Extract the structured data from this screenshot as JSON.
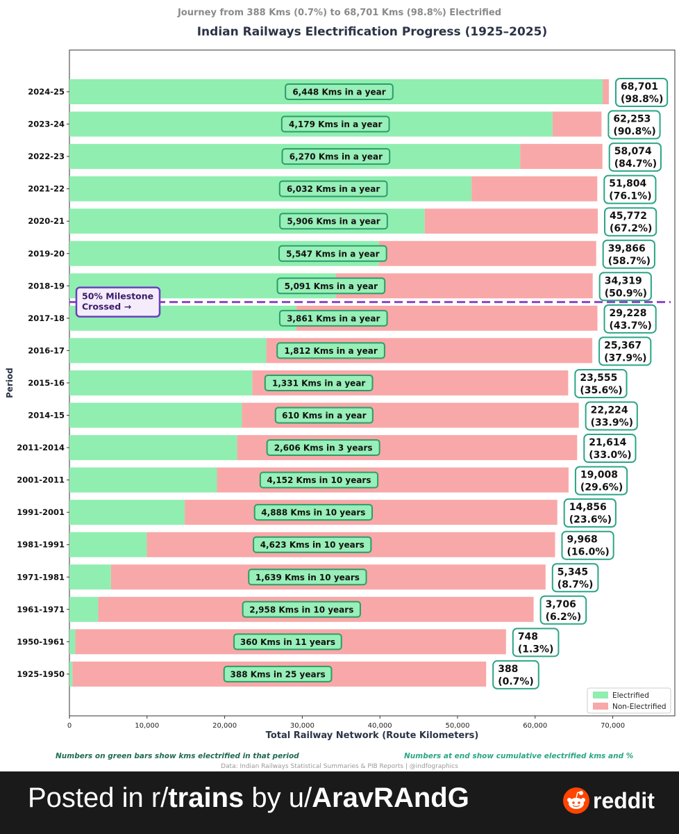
{
  "chart_data": {
    "type": "bar",
    "orientation": "horizontal",
    "stacked": true,
    "subtitle": "Journey from 388 Kms (0.7%) to 68,701 Kms (98.8%) Electrified",
    "title": "Indian Railways Electrification Progress (1925–2025)",
    "xlabel": "Total Railway Network (Route Kilometers)",
    "ylabel": "Period",
    "xlim": [
      0,
      78000
    ],
    "xticks": [
      0,
      10000,
      20000,
      30000,
      40000,
      50000,
      60000,
      70000
    ],
    "xtick_labels": [
      "0",
      "10,000",
      "20,000",
      "30,000",
      "40,000",
      "50,000",
      "60,000",
      "70,000"
    ],
    "categories": [
      "2024-25",
      "2023-24",
      "2022-23",
      "2021-22",
      "2020-21",
      "2019-20",
      "2018-19",
      "2017-18",
      "2016-17",
      "2015-16",
      "2014-15",
      "2011-2014",
      "2001-2011",
      "1991-2001",
      "1981-1991",
      "1971-1981",
      "1961-1971",
      "1950-1961",
      "1925-1950"
    ],
    "series": [
      {
        "name": "Electrified",
        "color": "#90eeb0",
        "values": [
          68701,
          62253,
          58074,
          51804,
          45772,
          39866,
          34319,
          29228,
          25367,
          23555,
          22224,
          21614,
          19008,
          14856,
          9968,
          5345,
          3706,
          748,
          388
        ]
      },
      {
        "name": "Non-Electrified",
        "color": "#f8a8a8",
        "values": [
          800,
          6300,
          10600,
          16200,
          22300,
          28000,
          33100,
          38800,
          42000,
          40700,
          43400,
          43800,
          45300,
          48000,
          52600,
          56000,
          56100,
          55500,
          53300
        ]
      }
    ],
    "bar_labels": [
      "6,448 Kms in a year",
      "4,179 Kms in a year",
      "6,270 Kms in a year",
      "6,032 Kms in a year",
      "5,906 Kms in a year",
      "5,547 Kms in a year",
      "5,091 Kms in a year",
      "3,861 Kms in a year",
      "1,812 Kms in a year",
      "1,331 Kms in a year",
      "610 Kms in a year",
      "2,606 Kms in 3 years",
      "4,152 Kms in 10 years",
      "4,888 Kms in 10 years",
      "4,623 Kms in 10 years",
      "1,639 Kms in 10 years",
      "2,958 Kms in 10 years",
      "360 Kms in 11 years",
      "388 Kms in 25 years"
    ],
    "end_labels": [
      [
        "68,701",
        "(98.8%)"
      ],
      [
        "62,253",
        "(90.8%)"
      ],
      [
        "58,074",
        "(84.7%)"
      ],
      [
        "51,804",
        "(76.1%)"
      ],
      [
        "45,772",
        "(67.2%)"
      ],
      [
        "39,866",
        "(58.7%)"
      ],
      [
        "34,319",
        "(50.9%)"
      ],
      [
        "29,228",
        "(43.7%)"
      ],
      [
        "25,367",
        "(37.9%)"
      ],
      [
        "23,555",
        "(35.6%)"
      ],
      [
        "22,224",
        "(33.9%)"
      ],
      [
        "21,614",
        "(33.0%)"
      ],
      [
        "19,008",
        "(29.6%)"
      ],
      [
        "14,856",
        "(23.6%)"
      ],
      [
        "9,968",
        "(16.0%)"
      ],
      [
        "5,345",
        "(8.7%)"
      ],
      [
        "3,706",
        "(6.2%)"
      ],
      [
        "748",
        "(1.3%)"
      ],
      [
        "388",
        "(0.7%)"
      ]
    ],
    "milestone": {
      "label_line1": "50% Milestone",
      "label_line2": "Crossed →",
      "between": [
        "2018-19",
        "2017-18"
      ],
      "color": "#8a46c8"
    },
    "legend": {
      "position": "lower-right",
      "entries": [
        "Electrified",
        "Non-Electrified"
      ]
    },
    "notes": {
      "left": "Numbers on green bars show kms electrified in that period",
      "right": "Numbers at end show cumulative electrified kms and %",
      "source": "Data: Indian Railways Statistical Summaries & PIB Reports | @indfographics"
    },
    "colors": {
      "electrified": "#90eeb0",
      "non_electrified": "#f8a8a8",
      "label_border": "#2a9d6a",
      "end_border": "#2aa585"
    }
  },
  "footer": {
    "posted_prefix": "Posted in r/",
    "subreddit": "trains",
    "by": " by u/",
    "user": "AravRAndG",
    "brand": "reddit"
  }
}
